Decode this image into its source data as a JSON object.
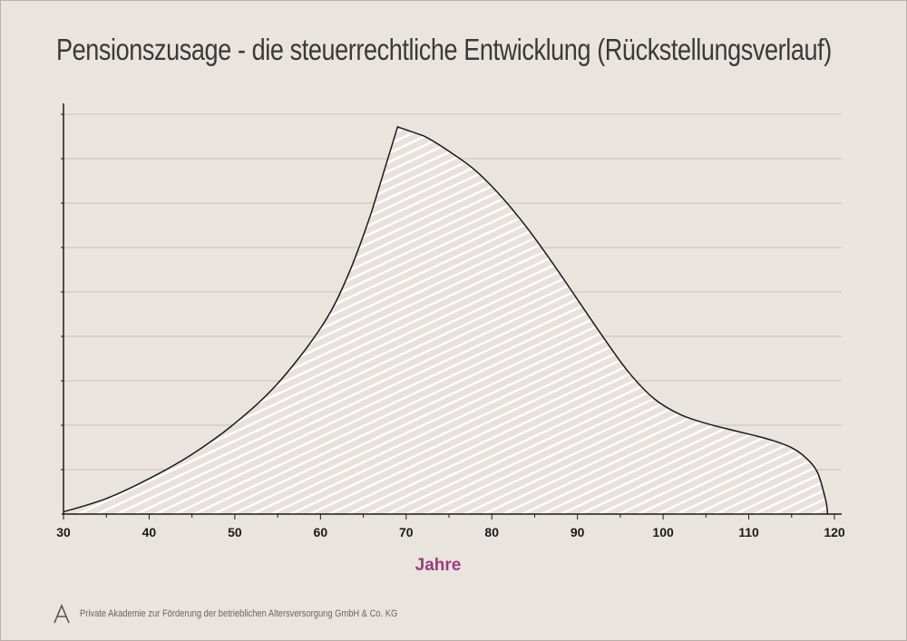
{
  "chart_data": {
    "type": "area",
    "title": "Pensionszusage - die steuerrechtliche Entwicklung (Rückstellungsverlauf)",
    "xlabel": "Jahre",
    "ylabel": "",
    "xlim": [
      30,
      120
    ],
    "ylim": [
      0,
      9.2
    ],
    "x_ticks": [
      "30",
      "40",
      "50",
      "60",
      "70",
      "80",
      "90",
      "100",
      "110",
      "120"
    ],
    "grid": true,
    "legend": "none",
    "x": [
      30,
      35,
      40,
      45,
      50,
      55,
      60,
      63,
      66,
      69,
      72,
      75,
      78,
      81,
      84,
      87,
      90,
      93,
      96,
      99,
      102,
      105,
      108,
      111,
      113,
      115,
      116.5,
      118,
      119,
      119.2
    ],
    "values": [
      0.05,
      0.35,
      0.8,
      1.35,
      2.05,
      2.95,
      4.2,
      5.3,
      6.85,
      8.75,
      8.55,
      8.2,
      7.78,
      7.2,
      6.5,
      5.7,
      4.85,
      4.0,
      3.2,
      2.6,
      2.25,
      2.05,
      1.9,
      1.76,
      1.65,
      1.5,
      1.3,
      0.95,
      0.3,
      0.0
    ],
    "line_color": "#1a1a1a",
    "fill_color": "#e8e2dc",
    "hatch_color": "#ffffff",
    "axis_label_color": "#9a3c7e"
  },
  "footer": {
    "logo_icon": "akademie-logo-icon",
    "text": "Private Akademie zur Förderung der betrieblichen Altersversorgung GmbH & Co. KG"
  }
}
